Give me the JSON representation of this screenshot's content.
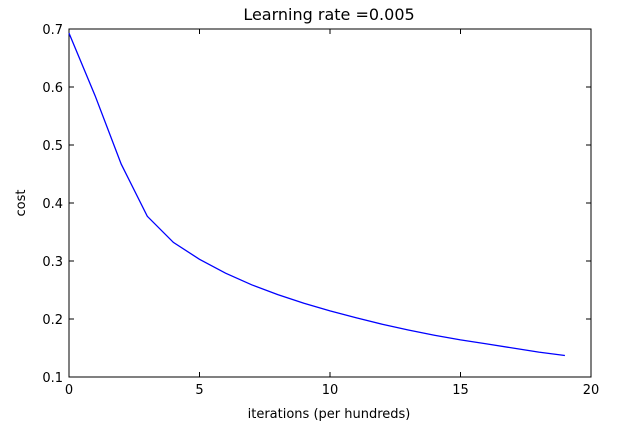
{
  "chart_data": {
    "type": "line",
    "title": "Learning rate =0.005",
    "xlabel": "iterations (per hundreds)",
    "ylabel": "cost",
    "xlim": [
      0,
      20
    ],
    "ylim": [
      0.1,
      0.7
    ],
    "xticks": [
      0,
      5,
      10,
      15,
      20
    ],
    "yticks": [
      0.1,
      0.2,
      0.3,
      0.4,
      0.5,
      0.6,
      0.7
    ],
    "grid": false,
    "series": [
      {
        "color": "#0000ff",
        "x": [
          0,
          1,
          2,
          3,
          4,
          5,
          6,
          7,
          8,
          9,
          10,
          11,
          12,
          13,
          14,
          15,
          16,
          17,
          18,
          19
        ],
        "y": [
          0.693,
          0.585,
          0.467,
          0.377,
          0.332,
          0.303,
          0.279,
          0.259,
          0.242,
          0.227,
          0.214,
          0.202,
          0.191,
          0.181,
          0.172,
          0.164,
          0.157,
          0.15,
          0.143,
          0.137
        ]
      }
    ]
  }
}
